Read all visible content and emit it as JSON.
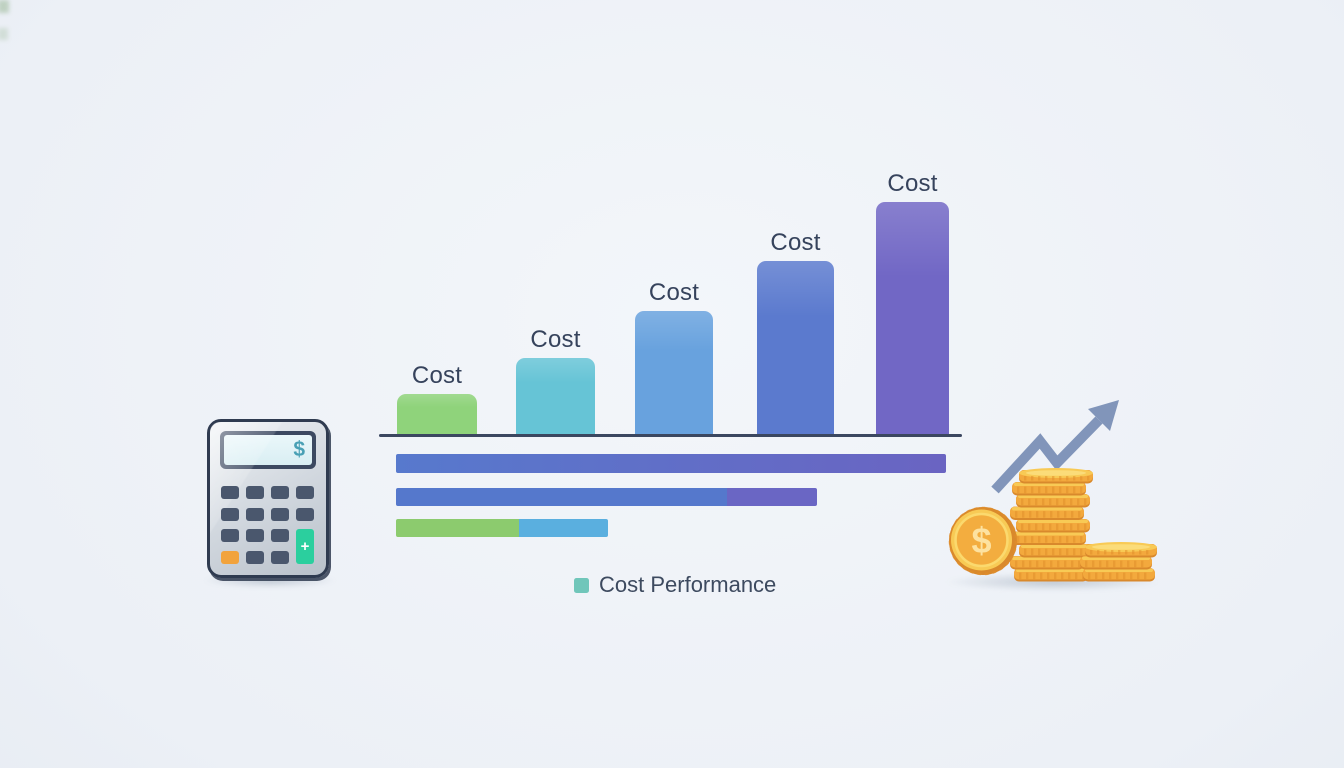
{
  "scene": {
    "description": "Flat illustration of rising costs: calculator with dollar display, ascending bar chart labeled Cost, horizontal progress bars, Cost Performance legend, stack of gold coins with upward growth arrow",
    "palette": {
      "bg_center": "#f3f6fa",
      "bg_edge": "#dde3ec",
      "corner_green": "#6f9a63",
      "axis": "#3b4760",
      "label": "#36435c",
      "legend_swatch": "#70c6ba",
      "legend_text": "#3d4a5f",
      "calc_border": "#2f3b50",
      "calc_light": "#eef1f4",
      "calc_mid": "#d3d9e0",
      "calc_dark": "#b9c1ca",
      "calc_frame": "#3c4961",
      "calc_screen": "#d9eef3",
      "calc_screen_text": "#49a0b5",
      "key": "#4a576d",
      "key_orange": "#f2a33c",
      "key_green": "#2bcf9e",
      "key_plus": "#ffffff",
      "arrow": "#8195ba",
      "gold_side": "#f3a93d",
      "gold_ridge": "#e08d2a",
      "gold_top": "#f8ca55",
      "gold_rim": "#fbdc79",
      "gold_edge": "#d9892c",
      "gold_face": "#f3ad3f",
      "gold_ring": "#fbd96e",
      "gold_symbol": "#fde2a0"
    }
  },
  "chart_data": {
    "type": "bar",
    "title": "",
    "categories": [
      "Cost",
      "Cost",
      "Cost",
      "Cost",
      "Cost"
    ],
    "values_pct_of_max": [
      17.6,
      33,
      53.2,
      74.7,
      100
    ],
    "bar_colors": [
      "#8fd37b",
      "#66c4d6",
      "#68a2de",
      "#5b7ace",
      "#7167c5"
    ],
    "xlabel": "",
    "ylabel": "",
    "axis_ticks": [],
    "gridlines": false,
    "legend": {
      "label": "Cost Performance",
      "swatch_color": "#70c6ba",
      "position": "bottom-center"
    },
    "progress_bars": [
      {
        "name": "row-1",
        "width_pct_of_max": 100,
        "segments": [
          {
            "type": "gradient",
            "from": "#5779cd",
            "to": "#6a64c2",
            "pct": 100
          }
        ]
      },
      {
        "name": "row-2",
        "width_pct_of_max": 76.5,
        "segments": [
          {
            "type": "solid",
            "color": "#5578cc",
            "pct": 78.6
          },
          {
            "type": "solid",
            "color": "#6a66c4",
            "pct": 21.4
          }
        ]
      },
      {
        "name": "row-3",
        "width_pct_of_max": 38.5,
        "segments": [
          {
            "type": "solid",
            "color": "#8ccb6e",
            "pct": 58
          },
          {
            "type": "solid",
            "color": "#5aafdf",
            "pct": 42
          }
        ]
      }
    ]
  },
  "calculator": {
    "display_symbol": "$",
    "plus_label": "+",
    "keypad_rows": [
      "dddd",
      "dddd",
      "dddG",
      "odd"
    ]
  },
  "coins": {
    "symbol": "$"
  }
}
